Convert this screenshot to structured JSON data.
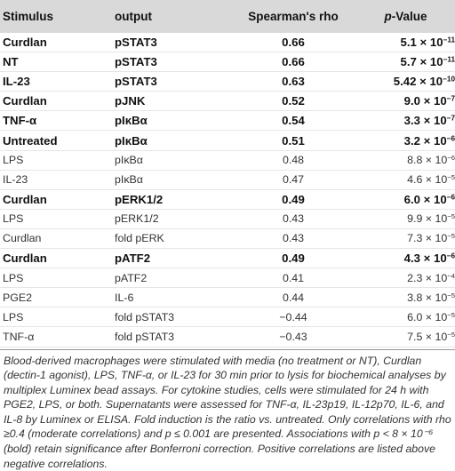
{
  "table": {
    "headers": {
      "stimulus": "Stimulus",
      "output": "output",
      "rho": "Spearman's rho",
      "pvalue_italic": "p",
      "pvalue_rest": "-Value"
    },
    "rows": [
      {
        "stimulus": "Curdlan",
        "output": "pSTAT3",
        "rho": "0.66",
        "mant": "5.1 × 10",
        "exp": "−11",
        "bold": true
      },
      {
        "stimulus": "NT",
        "output": "pSTAT3",
        "rho": "0.66",
        "mant": "5.7 × 10",
        "exp": "−11",
        "bold": true
      },
      {
        "stimulus": "IL-23",
        "output": "pSTAT3",
        "rho": "0.63",
        "mant": "5.42 × 10",
        "exp": "−10",
        "bold": true
      },
      {
        "stimulus": "Curdlan",
        "output": "pJNK",
        "rho": "0.52",
        "mant": "9.0 × 10",
        "exp": "−7",
        "bold": true
      },
      {
        "stimulus": "TNF-α",
        "output": "pIκBα",
        "rho": "0.54",
        "mant": "3.3 × 10",
        "exp": "−7",
        "bold": true
      },
      {
        "stimulus": "Untreated",
        "output": "pIκBα",
        "rho": "0.51",
        "mant": "3.2 × 10",
        "exp": "−6",
        "bold": true
      },
      {
        "stimulus": "LPS",
        "output": "pIκBα",
        "rho": "0.48",
        "mant": "8.8 × 10",
        "exp": "−6",
        "bold": false
      },
      {
        "stimulus": "IL-23",
        "output": "pIκBα",
        "rho": "0.47",
        "mant": "4.6 × 10",
        "exp": "−5",
        "bold": false
      },
      {
        "stimulus": "Curdlan",
        "output": "pERK1/2",
        "rho": "0.49",
        "mant": "6.0 × 10",
        "exp": "−6",
        "bold": true
      },
      {
        "stimulus": "LPS",
        "output": "pERK1/2",
        "rho": "0.43",
        "mant": "9.9 × 10",
        "exp": "−5",
        "bold": false
      },
      {
        "stimulus": "Curdlan",
        "output": "fold pERK",
        "rho": "0.43",
        "mant": "7.3 × 10",
        "exp": "−5",
        "bold": false
      },
      {
        "stimulus": "Curdlan",
        "output": "pATF2",
        "rho": "0.49",
        "mant": "4.3 × 10",
        "exp": "−6",
        "bold": true
      },
      {
        "stimulus": "LPS",
        "output": "pATF2",
        "rho": "0.41",
        "mant": "2.3 × 10",
        "exp": "−4",
        "bold": false
      },
      {
        "stimulus": "PGE2",
        "output": "IL-6",
        "rho": "0.44",
        "mant": "3.8 × 10",
        "exp": "−5",
        "bold": false
      },
      {
        "stimulus": "LPS",
        "output": "fold pSTAT3",
        "rho": "−0.44",
        "mant": "6.0 × 10",
        "exp": "−5",
        "bold": false
      },
      {
        "stimulus": "TNF-α",
        "output": "fold pSTAT3",
        "rho": "−0.43",
        "mant": "7.5 × 10",
        "exp": "−5",
        "bold": false
      }
    ]
  },
  "footnote": "Blood-derived macrophages were stimulated with media (no treatment or NT), Curdlan (dectin-1 agonist), LPS, TNF-α, or IL-23 for 30 min prior to lysis for biochemical analyses by multiplex Luminex bead assays. For cytokine studies, cells were stimulated for 24 h with PGE2, LPS, or both. Supernatants were assessed for TNF-α, IL-23p19, IL-12p70, IL-6, and IL-8 by Luminex or ELISA. Fold induction is the ratio vs. untreated. Only correlations with rho ≥0.4 (moderate correlations) and p ≤ 0.001 are presented. Associations with p < 8 × 10⁻⁶ (bold) retain significance after Bonferroni correction. Positive correlations are listed above negative correlations."
}
